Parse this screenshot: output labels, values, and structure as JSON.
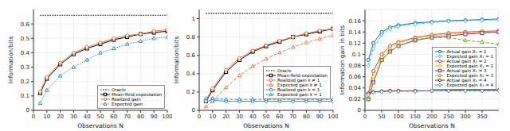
{
  "chart_data": [
    {
      "type": "line",
      "x_label": "Observations N",
      "y_label": "Information/bits",
      "x": [
        5,
        10,
        20,
        30,
        40,
        50,
        60,
        70,
        80,
        90,
        100
      ],
      "xlim": [
        0,
        100
      ],
      "xticks": [
        0,
        10,
        20,
        30,
        40,
        50,
        60,
        70,
        80,
        90,
        100
      ],
      "ylim": [
        0,
        0.7
      ],
      "yticks": [
        0,
        0.1,
        0.2,
        0.3,
        0.4,
        0.5,
        0.6
      ],
      "grid": true,
      "legend": "lower right",
      "series": [
        {
          "name": "Oracle",
          "color": "#000000",
          "marker": "none",
          "line_style": "dotted",
          "values": [
            0.66,
            0.66,
            0.66,
            0.66,
            0.66,
            0.66,
            0.66,
            0.66,
            0.66,
            0.66,
            0.66
          ]
        },
        {
          "name": "Mean-field expectation",
          "color": "#000000",
          "marker": "square",
          "line_style": "solid",
          "values": [
            0.12,
            0.22,
            0.32,
            0.39,
            0.43,
            0.46,
            0.49,
            0.51,
            0.53,
            0.54,
            0.55
          ]
        },
        {
          "name": "Realized gain",
          "color": "#f07b3f",
          "marker": "circle",
          "line_style": "solid",
          "values": [
            0.13,
            0.23,
            0.33,
            0.4,
            0.44,
            0.47,
            0.5,
            0.52,
            0.53,
            0.55,
            0.56
          ]
        },
        {
          "name": "Expected gain",
          "color": "#2e8bc9",
          "marker": "triangle",
          "line_style": "dotted",
          "values": [
            0.05,
            0.14,
            0.24,
            0.3,
            0.35,
            0.4,
            0.43,
            0.46,
            0.48,
            0.5,
            0.51
          ]
        }
      ]
    },
    {
      "type": "line",
      "x_label": "Observations N",
      "y_label": "Information/bits",
      "x": [
        5,
        10,
        20,
        30,
        40,
        50,
        60,
        70,
        80,
        90,
        100
      ],
      "xlim": [
        0,
        100
      ],
      "xticks": [
        0,
        10,
        20,
        30,
        40,
        50,
        60,
        70,
        80,
        90,
        100
      ],
      "ylim": [
        0,
        1.1
      ],
      "yticks": [
        0,
        0.2,
        0.4,
        0.6,
        0.8,
        1
      ],
      "grid": true,
      "legend": "center right",
      "series": [
        {
          "name": "Oracle",
          "color": "#000000",
          "marker": "none",
          "line_style": "dotted",
          "values": [
            1.06,
            1.06,
            1.06,
            1.06,
            1.06,
            1.06,
            1.06,
            1.06,
            1.06,
            1.06,
            1.06
          ]
        },
        {
          "name": "Mean-field expectation",
          "color": "#000000",
          "marker": "square",
          "line_style": "solid",
          "values": [
            0.1,
            0.22,
            0.42,
            0.55,
            0.64,
            0.7,
            0.75,
            0.8,
            0.83,
            0.86,
            0.89
          ]
        },
        {
          "name": "Realized gain k ≠ 1",
          "color": "#f07b3f",
          "marker": "circle",
          "line_style": "solid",
          "values": [
            0.11,
            0.24,
            0.44,
            0.57,
            0.65,
            0.71,
            0.76,
            0.8,
            0.84,
            0.87,
            0.89
          ]
        },
        {
          "name": "Expected gain k ≠ 1",
          "color": "#f07b3f",
          "marker": "triangle",
          "line_style": "dashed",
          "values": [
            0.04,
            0.1,
            0.25,
            0.38,
            0.48,
            0.56,
            0.63,
            0.69,
            0.74,
            0.78,
            0.82
          ]
        },
        {
          "name": "Realized gain k = 1",
          "color": "#2e8bc9",
          "marker": "circle",
          "line_style": "solid",
          "values": [
            0.1,
            0.11,
            0.1,
            0.1,
            0.1,
            0.1,
            0.1,
            0.1,
            0.1,
            0.1,
            0.1
          ]
        },
        {
          "name": "Expected gain k = 1",
          "color": "#2e8bc9",
          "marker": "triangle",
          "line_style": "dashed",
          "values": [
            0.13,
            0.13,
            0.12,
            0.12,
            0.12,
            0.12,
            0.12,
            0.12,
            0.12,
            0.12,
            0.12
          ]
        }
      ]
    },
    {
      "type": "line",
      "x_label": "Observations N",
      "y_label": "Information gain in bits",
      "x": [
        10,
        25,
        50,
        75,
        100,
        150,
        200,
        250,
        300,
        350,
        400
      ],
      "xlim": [
        0,
        400
      ],
      "xticks": [
        0,
        50,
        100,
        150,
        200,
        250,
        300,
        350
      ],
      "ylim": [
        0,
        0.18
      ],
      "yticks": [
        0,
        0.02,
        0.04,
        0.06,
        0.08,
        0.1,
        0.12,
        0.14,
        0.16
      ],
      "grid": true,
      "legend": "center right",
      "series": [
        {
          "name": "Actual gain X₁ = 1",
          "color": "#0072bd",
          "marker": "circle",
          "line_style": "solid",
          "values": [
            0.09,
            0.12,
            0.14,
            0.148,
            0.152,
            0.156,
            0.158,
            0.16,
            0.161,
            0.162,
            0.163
          ]
        },
        {
          "name": "Expected gain X₁ = 1",
          "color": "#4dbeee",
          "marker": "diamond",
          "line_style": "dashed",
          "values": [
            0.08,
            0.11,
            0.135,
            0.145,
            0.15,
            0.154,
            0.157,
            0.159,
            0.16,
            0.161,
            0.162
          ]
        },
        {
          "name": "Actual gain X₁ = 2",
          "color": "#d95319",
          "marker": "circle",
          "line_style": "solid",
          "values": [
            0.03,
            0.07,
            0.1,
            0.115,
            0.122,
            0.13,
            0.135,
            0.138,
            0.14,
            0.141,
            0.142
          ]
        },
        {
          "name": "Expected gain X₁ = 2",
          "color": "#edb120",
          "marker": "diamond",
          "line_style": "dashed",
          "values": [
            0.025,
            0.06,
            0.095,
            0.11,
            0.12,
            0.128,
            0.133,
            0.136,
            0.138,
            0.14,
            0.141
          ]
        },
        {
          "name": "Actual gain X₁ = 3",
          "color": "#7e2f8e",
          "marker": "square",
          "line_style": "solid",
          "values": [
            0.02,
            0.05,
            0.09,
            0.105,
            0.115,
            0.125,
            0.13,
            0.133,
            0.136,
            0.138,
            0.14
          ]
        },
        {
          "name": "Expected gain X₁ = 3",
          "color": "#77ac30",
          "marker": "triangle",
          "line_style": "dashed",
          "values": [
            0.02,
            0.05,
            0.09,
            0.105,
            0.115,
            0.126,
            0.13,
            0.13,
            0.125,
            0.122,
            0.118
          ]
        },
        {
          "name": "Actual gain X₁ = 4",
          "color": "#a2142f",
          "marker": "circle",
          "line_style": "solid",
          "values": [
            0.03,
            0.033,
            0.034,
            0.035,
            0.035,
            0.035,
            0.035,
            0.036,
            0.036,
            0.036,
            0.036
          ]
        },
        {
          "name": "Expected gain X₁ = 4",
          "color": "#3aa0a0",
          "marker": "diamond",
          "line_style": "dashed",
          "values": [
            0.028,
            0.032,
            0.033,
            0.034,
            0.034,
            0.034,
            0.035,
            0.035,
            0.035,
            0.035,
            0.035
          ]
        }
      ]
    }
  ]
}
